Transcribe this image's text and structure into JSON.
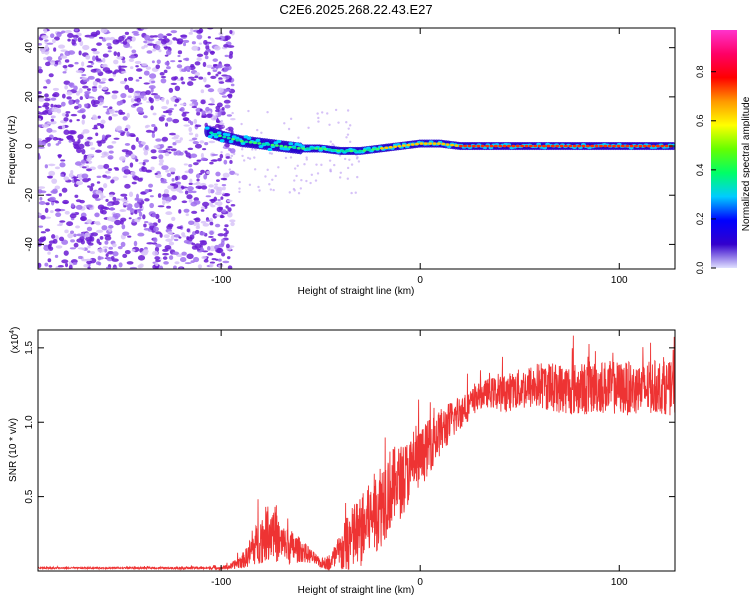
{
  "title": "C2E6.2025.268.22.43.E27",
  "colors": {
    "signal": "#ee3333",
    "scatter": "#7a1fd6",
    "axis": "#000000"
  },
  "chart_data": [
    {
      "type": "heatmap",
      "title": "C2E6.2025.268.22.43.E27",
      "xlabel": "Height of straight line (km)",
      "ylabel": "Frequency (Hz)",
      "xlim": [
        -192,
        128
      ],
      "ylim": [
        -50,
        48
      ],
      "xticks": [
        -100,
        0,
        100
      ],
      "xtick_labels": [
        "-100",
        "0",
        "100"
      ],
      "yticks": [
        40,
        20,
        0,
        -20,
        -40
      ],
      "ytick_labels": [
        "40",
        "20",
        "0",
        "-20",
        "-40"
      ],
      "noise_region_x": [
        -192,
        -100
      ],
      "ridge": {
        "x": [
          -107,
          -100,
          -90,
          -80,
          -70,
          -60,
          -50,
          -40,
          -30,
          -20,
          -10,
          0,
          10,
          20,
          30,
          40,
          50,
          60,
          70,
          80,
          90,
          100,
          110,
          128
        ],
        "freq": [
          6,
          4,
          2,
          1,
          0,
          -1,
          -1,
          -2,
          -2,
          -1,
          0,
          1,
          1,
          0,
          0,
          0,
          0,
          0,
          0,
          0,
          0,
          0,
          0,
          0
        ]
      },
      "colorbar": {
        "label": "Normalized spectral amplitude",
        "ticks": [
          0.0,
          0.2,
          0.4,
          0.6,
          0.8
        ],
        "tick_labels": [
          "0.0",
          "0.2",
          "0.4",
          "0.6",
          "0.8"
        ],
        "range": [
          0,
          0.97
        ],
        "stops": [
          "#e0e0ff",
          "#3300cc",
          "#0000ff",
          "#00ccff",
          "#00ff66",
          "#66ff00",
          "#ffff00",
          "#ff9900",
          "#ff0000",
          "#ff0066",
          "#ff33cc"
        ]
      }
    },
    {
      "type": "line",
      "xlabel": "Height of straight line (km)",
      "ylabel": "SNR (10 * v/v)",
      "scale_label": "(x10",
      "scale_exp": "4",
      "scale_close": ")",
      "xlim": [
        -192,
        128
      ],
      "ylim": [
        0,
        1.62
      ],
      "xticks": [
        -100,
        0,
        100
      ],
      "xtick_labels": [
        "-100",
        "0",
        "100"
      ],
      "yticks": [
        0.5,
        1.0,
        1.5
      ],
      "ytick_labels": [
        "0.5",
        "1.0",
        "1.5"
      ],
      "envelope": {
        "x": [
          -192,
          -150,
          -100,
          -95,
          -88,
          -80,
          -75,
          -70,
          -65,
          -60,
          -55,
          -50,
          -45,
          -40,
          -35,
          -30,
          -25,
          -20,
          -15,
          -10,
          -5,
          0,
          5,
          10,
          15,
          20,
          25,
          30,
          35,
          40,
          50,
          60,
          70,
          80,
          90,
          100,
          110,
          120,
          128
        ],
        "base": [
          0.02,
          0.02,
          0.02,
          0.03,
          0.08,
          0.22,
          0.28,
          0.18,
          0.16,
          0.14,
          0.1,
          0.05,
          0.06,
          0.12,
          0.2,
          0.26,
          0.35,
          0.45,
          0.55,
          0.6,
          0.68,
          0.75,
          0.85,
          0.93,
          1.0,
          1.07,
          1.12,
          1.18,
          1.2,
          1.19,
          1.22,
          1.25,
          1.23,
          1.22,
          1.24,
          1.23,
          1.22,
          1.24,
          1.22
        ],
        "amp": [
          0.005,
          0.005,
          0.01,
          0.02,
          0.06,
          0.17,
          0.2,
          0.14,
          0.12,
          0.08,
          0.05,
          0.03,
          0.06,
          0.15,
          0.22,
          0.25,
          0.25,
          0.3,
          0.28,
          0.25,
          0.22,
          0.2,
          0.18,
          0.16,
          0.14,
          0.12,
          0.1,
          0.09,
          0.1,
          0.12,
          0.14,
          0.16,
          0.17,
          0.18,
          0.18,
          0.18,
          0.18,
          0.18,
          0.18
        ]
      }
    }
  ]
}
